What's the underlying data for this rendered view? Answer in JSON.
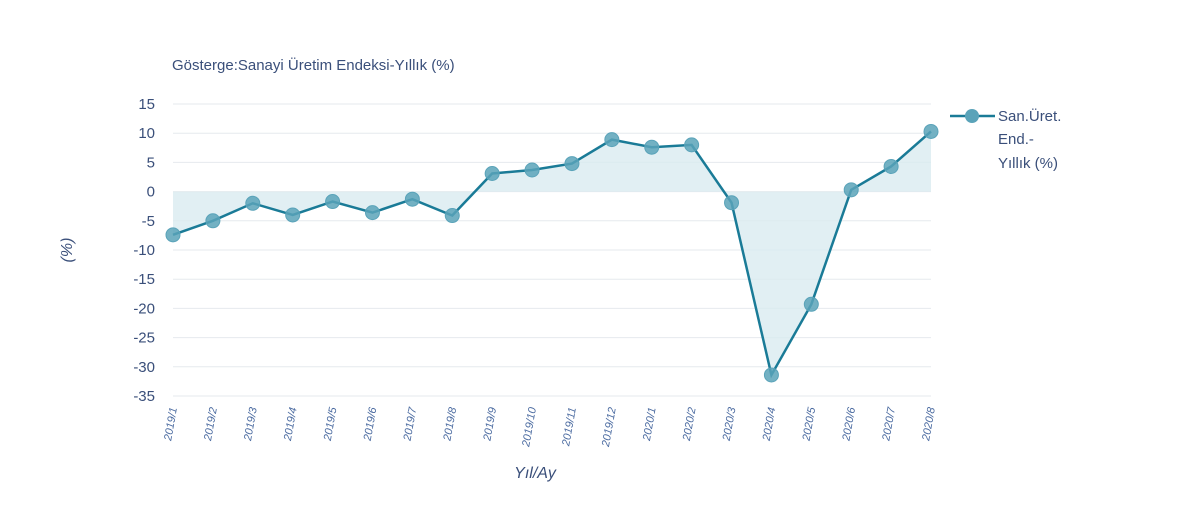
{
  "chart_data": {
    "type": "area",
    "title": "Gösterge:Sanayi Üretim Endeksi-Yıllık (%)",
    "xlabel": "Yıl/Ay",
    "ylabel": "(%)",
    "ylim": [
      -35,
      15
    ],
    "yticks": [
      15,
      10,
      5,
      0,
      -5,
      -10,
      -15,
      -20,
      -25,
      -30,
      -35
    ],
    "categories": [
      "2019/1",
      "2019/2",
      "2019/3",
      "2019/4",
      "2019/5",
      "2019/6",
      "2019/7",
      "2019/8",
      "2019/9",
      "2019/10",
      "2019/11",
      "2019/12",
      "2020/1",
      "2020/2",
      "2020/3",
      "2020/4",
      "2020/5",
      "2020/6",
      "2020/7",
      "2020/8"
    ],
    "series": [
      {
        "name": "San.Üret. End.- Yıllık (%)",
        "legend_lines": [
          "San.Üret.",
          "End.-",
          "Yıllık (%)"
        ],
        "values": [
          -7.4,
          -5.0,
          -2.0,
          -4.0,
          -1.7,
          -3.6,
          -1.3,
          -4.1,
          3.1,
          3.7,
          4.8,
          8.9,
          7.6,
          8.0,
          -1.9,
          -31.4,
          -19.3,
          0.3,
          4.3,
          10.3
        ]
      }
    ],
    "colors": {
      "line": "#1a7b97",
      "marker": "#5aa3b9",
      "fill": "#d9ebf0"
    },
    "legend_position": "right",
    "grid": true
  }
}
